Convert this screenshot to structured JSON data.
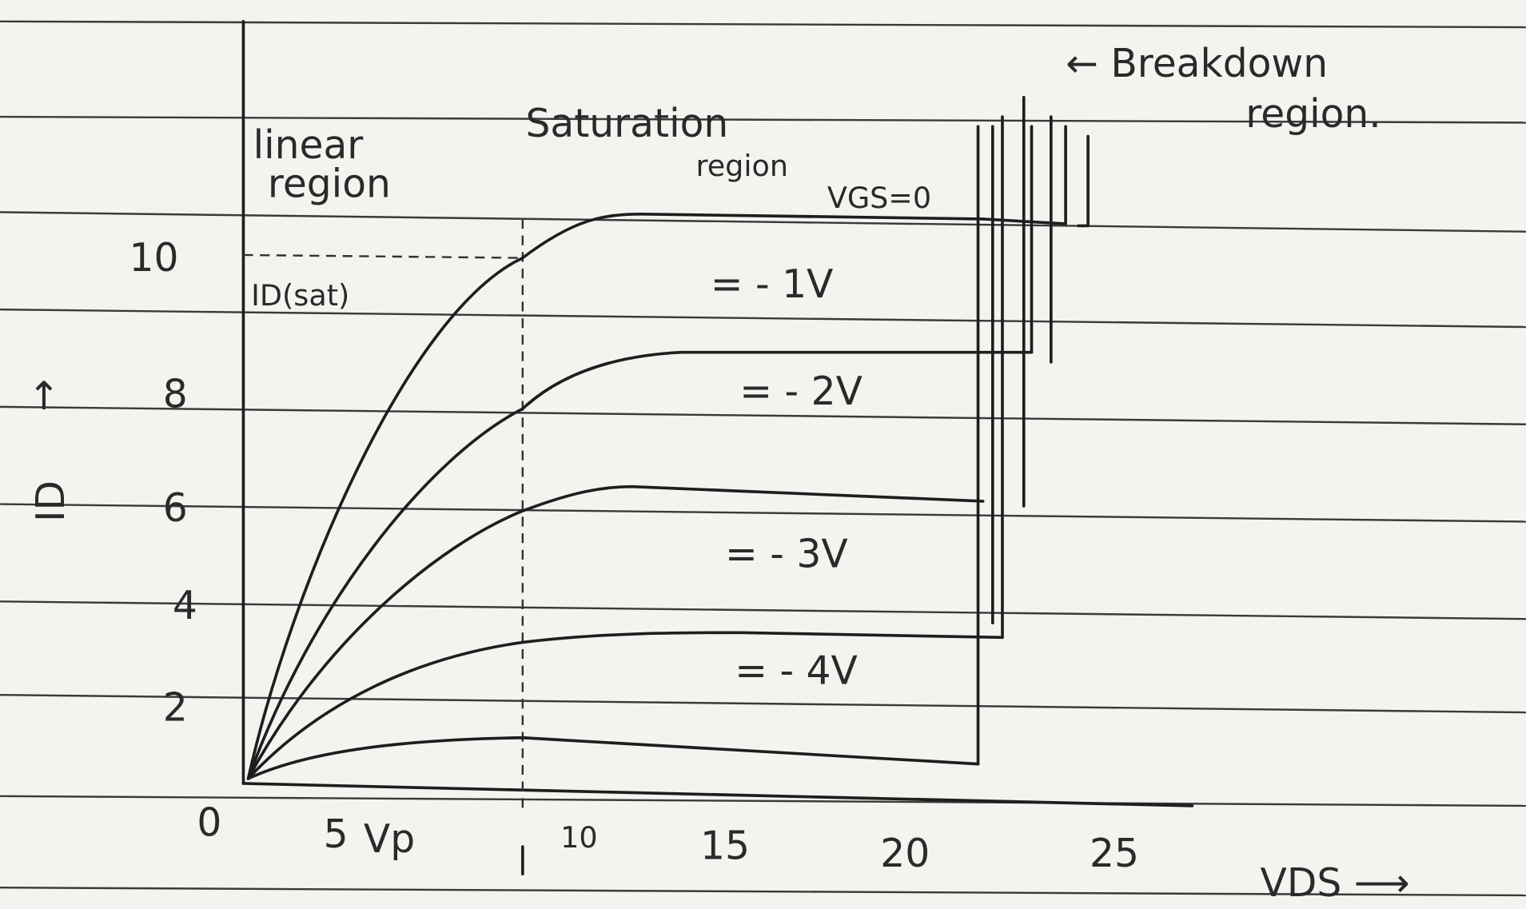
{
  "regions": {
    "linear": [
      "linear",
      "region"
    ],
    "saturation": [
      "Saturation",
      "region"
    ],
    "breakdown": [
      "← Breakdown",
      "region."
    ]
  },
  "curves": [
    {
      "label": "VGS=0"
    },
    {
      "label": "= - 1V"
    },
    {
      "label": "= - 2V"
    },
    {
      "label": "= - 3V"
    },
    {
      "label": "= - 4V"
    }
  ],
  "markers": {
    "id_sat": "ID(sat)"
  },
  "axes": {
    "y_label": "ID",
    "y_arrow": "↑",
    "x_label": "VDS ⟶",
    "origin": "0",
    "y_ticks": [
      "10",
      "8",
      "6",
      "4",
      "2"
    ],
    "x_ticks": [
      "5",
      "Vp",
      "10",
      "15",
      "20",
      "25"
    ]
  }
}
